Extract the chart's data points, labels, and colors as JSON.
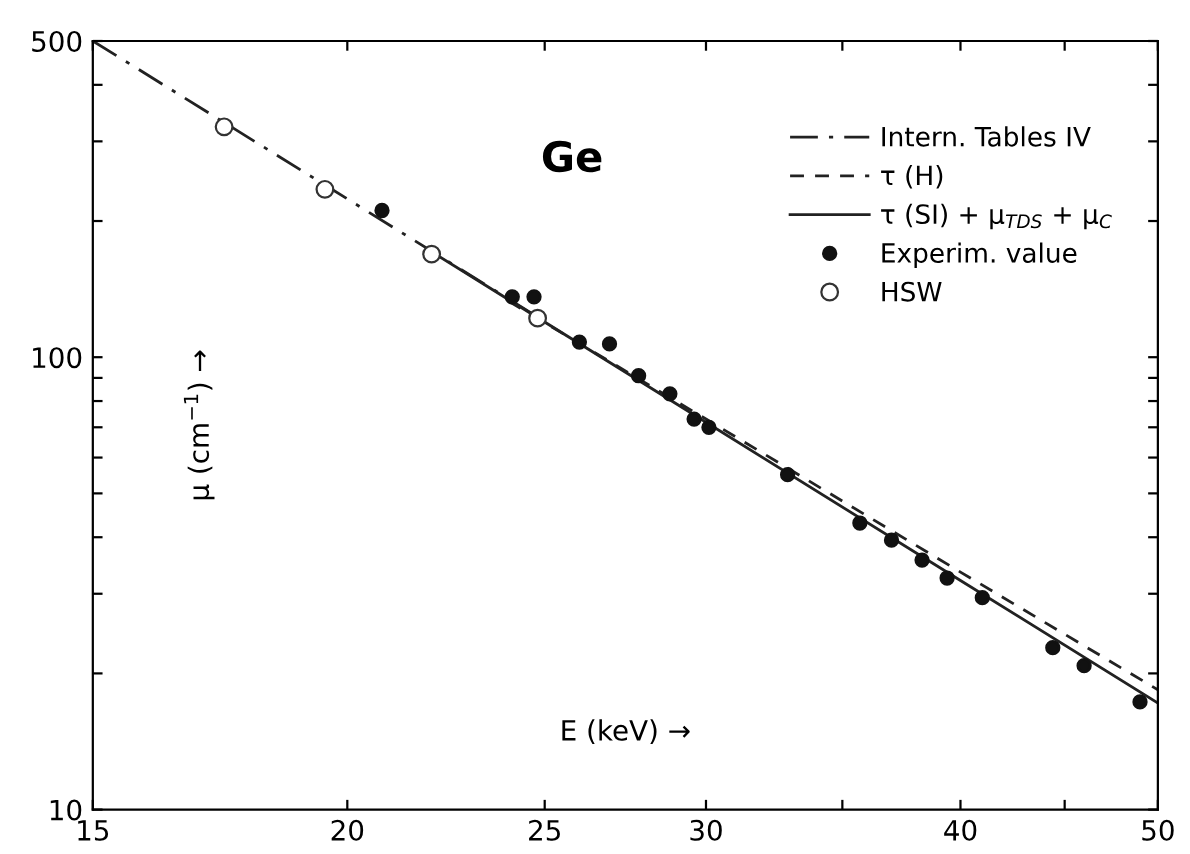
{
  "chart_data": {
    "type": "line",
    "title": "Ge",
    "xlabel": "E (keV) →",
    "ylabel": "μ (cm$^{−1}$) →",
    "log": "xy",
    "xlim": [
      15,
      50
    ],
    "ylim": [
      10,
      500
    ],
    "xticks": [
      15,
      20,
      25,
      30,
      {
        "value": 35,
        "label": null
      },
      40,
      {
        "value": 45,
        "label": null
      },
      50
    ],
    "yticks": [
      10,
      {
        "value": 20,
        "label": null
      },
      {
        "value": 30,
        "label": null
      },
      {
        "value": 40,
        "label": null
      },
      {
        "value": 50,
        "label": null
      },
      {
        "value": 60,
        "label": null
      },
      {
        "value": 70,
        "label": null
      },
      {
        "value": 80,
        "label": null
      },
      {
        "value": 90,
        "label": null
      },
      100,
      {
        "value": 200,
        "label": null
      },
      {
        "value": 300,
        "label": null
      },
      {
        "value": 400,
        "label": null
      },
      500
    ],
    "grid": false,
    "legend": "top right",
    "series": [
      {
        "name": "Intern. Tables IV",
        "line_style": "dashdot",
        "color": "#222222",
        "x": [
          15,
          25
        ],
        "values": [
          500,
          120
        ]
      },
      {
        "name": "τ (H)",
        "line_style": "dashed",
        "color": "#222222",
        "x": [
          24,
          30,
          40,
          50
        ],
        "values": [
          133,
          73,
          33.5,
          18.4
        ]
      },
      {
        "name": "τ (SI) + μ$_{TDS}$ + μ$_{C}$",
        "line_style": "solid",
        "color": "#222222",
        "x": [
          22,
          30,
          40,
          50
        ],
        "values": [
          171,
          71.8,
          32.1,
          17.2
        ]
      },
      {
        "name": "Experim. value",
        "type": "scatter",
        "marker": "circle",
        "color": "#111111",
        "x": [
          20.8,
          24.1,
          24.7,
          26.0,
          26.9,
          27.8,
          28.8,
          29.6,
          30.1,
          32.9,
          35.7,
          37.0,
          38.3,
          39.4,
          41.0,
          44.4,
          46.0,
          49.0
        ],
        "values": [
          211,
          136,
          136,
          108,
          107,
          91,
          83,
          73,
          70,
          55,
          43,
          39.4,
          35.6,
          32.5,
          29.4,
          22.8,
          20.8,
          17.3
        ]
      },
      {
        "name": "HSW",
        "type": "scatter",
        "marker": "open circle",
        "color": "#333333",
        "x": [
          17.4,
          19.5,
          22.0,
          24.8
        ],
        "values": [
          323,
          235,
          169,
          122
        ]
      }
    ]
  }
}
